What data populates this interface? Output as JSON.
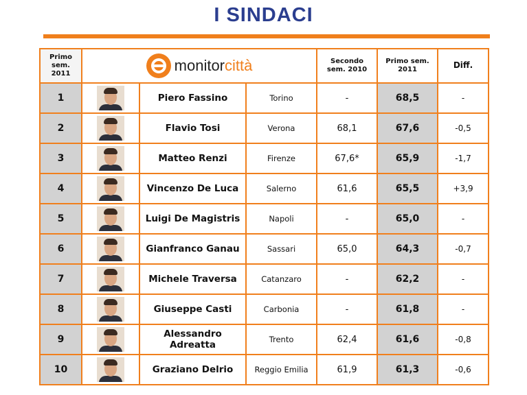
{
  "page": {
    "title": "I SINDACI"
  },
  "colors": {
    "accent": "#f07f1c",
    "title": "#2b3e8f",
    "shaded": "#d2d2d2"
  },
  "header": {
    "rank_label": "Primo\nsem.\n2011",
    "logo_part1": "monitor",
    "logo_part2": "città",
    "second_sem_label": "Secondo\nsem. 2010",
    "first_sem_label": "Primo  sem.\n2011",
    "diff_label": "Diff."
  },
  "rows": [
    {
      "rank": "1",
      "name": "Piero Fassino",
      "city": "Torino",
      "second_sem": "-",
      "first_sem": "68,5",
      "diff": "-",
      "photo": "portrait-piero-fassino"
    },
    {
      "rank": "2",
      "name": "Flavio Tosi",
      "city": "Verona",
      "second_sem": "68,1",
      "first_sem": "67,6",
      "diff": "-0,5",
      "photo": "portrait-flavio-tosi"
    },
    {
      "rank": "3",
      "name": "Matteo Renzi",
      "city": "Firenze",
      "second_sem": "67,6*",
      "first_sem": "65,9",
      "diff": "-1,7",
      "photo": "portrait-matteo-renzi"
    },
    {
      "rank": "4",
      "name": "Vincenzo De Luca",
      "city": "Salerno",
      "second_sem": "61,6",
      "first_sem": "65,5",
      "diff": "+3,9",
      "photo": "portrait-vincenzo-de-luca"
    },
    {
      "rank": "5",
      "name": "Luigi De Magistris",
      "city": "Napoli",
      "second_sem": "-",
      "first_sem": "65,0",
      "diff": "-",
      "photo": "portrait-luigi-de-magistris"
    },
    {
      "rank": "6",
      "name": "Gianfranco Ganau",
      "city": "Sassari",
      "second_sem": "65,0",
      "first_sem": "64,3",
      "diff": "-0,7",
      "photo": "portrait-gianfranco-ganau"
    },
    {
      "rank": "7",
      "name": "Michele Traversa",
      "city": "Catanzaro",
      "second_sem": "-",
      "first_sem": "62,2",
      "diff": "-",
      "photo": "portrait-michele-traversa"
    },
    {
      "rank": "8",
      "name": "Giuseppe Casti",
      "city": "Carbonia",
      "second_sem": "-",
      "first_sem": "61,8",
      "diff": "-",
      "photo": "portrait-giuseppe-casti"
    },
    {
      "rank": "9",
      "name": "Alessandro\nAdreatta",
      "city": "Trento",
      "second_sem": "62,4",
      "first_sem": "61,6",
      "diff": "-0,8",
      "photo": "portrait-alessandro-adreatta"
    },
    {
      "rank": "10",
      "name": "Graziano Delrio",
      "city": "Reggio Emilia",
      "second_sem": "61,9",
      "first_sem": "61,3",
      "diff": "-0,6",
      "photo": "portrait-graziano-delrio"
    }
  ]
}
